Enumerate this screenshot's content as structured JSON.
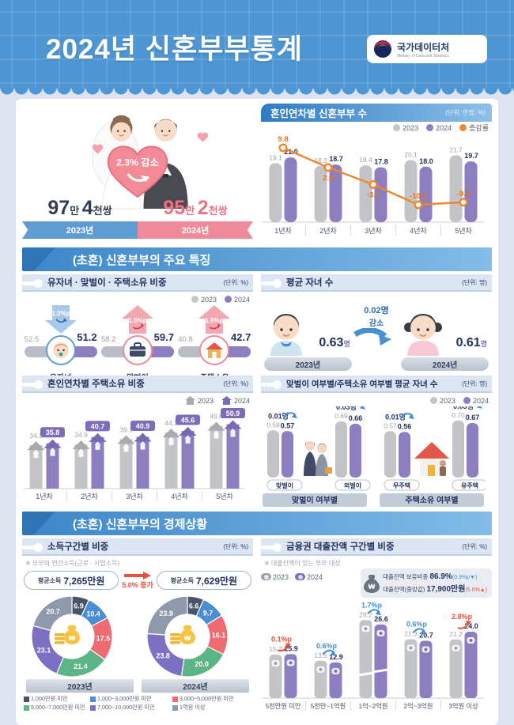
{
  "header": {
    "title": "2024년 신혼부부통계",
    "logo": {
      "name": "국가데이터처",
      "sub": "Ministry of Data and Statistics"
    }
  },
  "summary": {
    "badge": "2.3% 감소",
    "left": {
      "n1": "97",
      "u1": "만 ",
      "n2": "4",
      "u2": "천쌍",
      "year": "2023년"
    },
    "right": {
      "n1": "95",
      "u1": "만 ",
      "n2": "2",
      "u2": "천쌍",
      "year": "2024년"
    }
  },
  "sections": {
    "features": "(초혼) 신혼부부의 주요 특징",
    "economy": "(초혼) 신혼부부의 경제상황"
  },
  "legend": {
    "y2023": "2023",
    "y2024": "2024",
    "change": "증감률"
  },
  "colors": {
    "gray_bar": "#c3c4c8",
    "purple_bar": "#8d7ec0",
    "purple_dark": "#7e6cb8",
    "orange": "#f0862c",
    "orange_text": "#ee7012",
    "navy": "#22315e",
    "gray_text": "#9fa1a6",
    "red": "#e8503a",
    "blue": "#3f8edd",
    "ribbon_blue": "#5f9cd4",
    "ribbon_pink": "#ef8b99"
  },
  "chart_data": [
    {
      "id": "couples_by_year",
      "type": "bar",
      "title": "혼인연차별 신혼부부 수",
      "unit": "(단위: 만쌍, %)",
      "categories": [
        "1년차",
        "2년차",
        "3년차",
        "4년차",
        "5년차"
      ],
      "series": [
        {
          "name": "2023",
          "values": [
            19.1,
            18.2,
            18.4,
            20.1,
            21.7
          ]
        },
        {
          "name": "2024",
          "values": [
            21.0,
            18.7,
            17.8,
            18.0,
            19.7
          ]
        }
      ],
      "line": {
        "name": "증감률",
        "values": [
          9.8,
          2.9,
          -3.1,
          -10.2,
          -9.3
        ]
      },
      "legend_position": "top-right",
      "grid": false
    },
    {
      "id": "key_ratios",
      "type": "bar",
      "title": "유자녀 · 맞벌이 · 주택소유 비중",
      "unit": "(단위: %)",
      "items": [
        {
          "label": "유자녀",
          "v2023": 52.5,
          "v2024": 51.2,
          "change": "1.3%p",
          "direction": "down",
          "icon": "baby"
        },
        {
          "label": "맞벌이",
          "v2023": 58.2,
          "v2024": 59.7,
          "change": "1.5%p",
          "direction": "up",
          "icon": "briefcase"
        },
        {
          "label": "주택소유",
          "v2023": 40.8,
          "v2024": 42.7,
          "change": "1.9%p",
          "direction": "up",
          "icon": "house"
        }
      ]
    },
    {
      "id": "avg_children",
      "type": "table",
      "title": "평균 자녀 수",
      "unit": "(단위: 명)",
      "left": {
        "year": "2023년",
        "value": "0.63",
        "suffix": "명"
      },
      "right": {
        "year": "2024년",
        "value": "0.61",
        "suffix": "명"
      },
      "change": "0.02명",
      "change_label": "감소"
    },
    {
      "id": "home_ownership",
      "type": "bar",
      "title": "혼인연차별 주택소유 비중",
      "unit": "(단위: %)",
      "categories": [
        "1년차",
        "2년차",
        "3년차",
        "4년차",
        "5년차"
      ],
      "series": [
        {
          "name": "2023",
          "values": [
            34.3,
            34.9,
            39.1,
            44.3,
            49.6
          ]
        },
        {
          "name": "2024",
          "values": [
            35.8,
            40.7,
            40.9,
            45.6,
            50.9
          ]
        }
      ]
    },
    {
      "id": "children_by_status",
      "type": "bar",
      "title": "맞벌이 여부별/주택소유 여부별 평균 자녀 수",
      "unit": "(단위: 명)",
      "groups": [
        {
          "label": "맞벌이 여부별",
          "icon": "couple",
          "pairs": [
            {
              "label": "맞벌이",
              "v2023": 0.58,
              "v2024": 0.57,
              "change": "0.01명"
            },
            {
              "label": "외벌이",
              "v2023": 0.69,
              "v2024": 0.66,
              "change": "0.03명"
            }
          ]
        },
        {
          "label": "주택소유 여부별",
          "icon": "house",
          "pairs": [
            {
              "label": "무주택",
              "v2023": 0.57,
              "v2024": 0.56,
              "change": "0.01명"
            },
            {
              "label": "유주택",
              "v2023": 0.7,
              "v2024": 0.67,
              "change": "0.03명"
            }
          ]
        }
      ]
    },
    {
      "id": "income_share",
      "type": "pie",
      "title": "소득구간별 비중",
      "unit": "(단위: %)",
      "note": "※ 부부의 연간소득(근로 · 사업소득)",
      "avg_left": {
        "label": "평균소득",
        "value": "7,265만원"
      },
      "avg_right": {
        "label": "평균소득",
        "value": "7,629만원"
      },
      "avg_change": "5.0% 증가",
      "year_left": "2023년",
      "year_right": "2024년",
      "legend": [
        "1,000만원 미만",
        "1,000~3,000만원 미만",
        "3,000~5,000만원 미만",
        "5,000~7,000만원 미만",
        "7,000~10,000만원 미만",
        "1억원 이상"
      ],
      "colors": [
        "#49536a",
        "#4a8fd3",
        "#ee6b72",
        "#5cb585",
        "#7b70c4",
        "#8e9aab"
      ],
      "values_2023": [
        6.9,
        10.4,
        17.5,
        21.4,
        23.1,
        20.7
      ],
      "values_2024": [
        6.6,
        9.7,
        16.1,
        20.0,
        23.8,
        23.9
      ]
    },
    {
      "id": "loan_balance",
      "type": "bar",
      "title": "금융권 대출잔액 구간별 비중",
      "unit": "(단위: %)",
      "note": "※ 대출잔액이 있는 부부 대상",
      "info": [
        {
          "label": "대출잔액 보유비중",
          "value": "86.9%",
          "delta": "0.9%p",
          "delta_dir": "down"
        },
        {
          "label": "대출잔액(중앙값)",
          "value": "17,900만원",
          "delta": "5.0%",
          "delta_dir": "up"
        }
      ],
      "categories": [
        "5천만원 미만",
        "5천만~1억원",
        "1억~2억원",
        "2억~3억원",
        "3억원 이상"
      ],
      "series": [
        {
          "name": "2023",
          "values": [
            15.7,
            13.5,
            28.2,
            21.3,
            21.2
          ]
        },
        {
          "name": "2024",
          "values": [
            15.9,
            12.9,
            26.6,
            20.7,
            24.0
          ]
        }
      ],
      "changes": [
        {
          "text": "0.1%p",
          "dir": "up"
        },
        {
          "text": "0.6%p",
          "dir": "down"
        },
        {
          "text": "1.7%p",
          "dir": "down"
        },
        {
          "text": "0.6%p",
          "dir": "down"
        },
        {
          "text": "2.8%p",
          "dir": "up"
        }
      ]
    }
  ]
}
